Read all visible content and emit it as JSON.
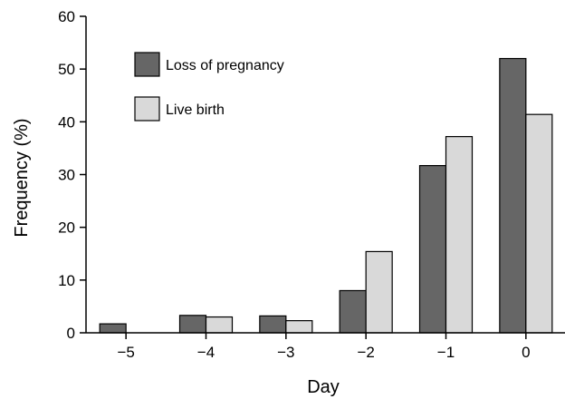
{
  "chart_data": {
    "type": "bar",
    "title": "",
    "xlabel": "Day",
    "ylabel": "Frequency (%)",
    "categories": [
      "−5",
      "−4",
      "−3",
      "−2",
      "−1",
      "0"
    ],
    "ylim": [
      0,
      60
    ],
    "yticks": [
      "0",
      "10",
      "20",
      "30",
      "40",
      "50",
      "60"
    ],
    "grid": false,
    "legend_position": "top-left",
    "series": [
      {
        "name": "Loss of pregnancy",
        "color": "#666666",
        "values": [
          1.7,
          3.3,
          3.2,
          8.0,
          31.7,
          52.0
        ]
      },
      {
        "name": "Live birth",
        "color": "#d9d9d9",
        "values": [
          0,
          3.0,
          2.3,
          15.4,
          37.2,
          41.4
        ]
      }
    ]
  }
}
